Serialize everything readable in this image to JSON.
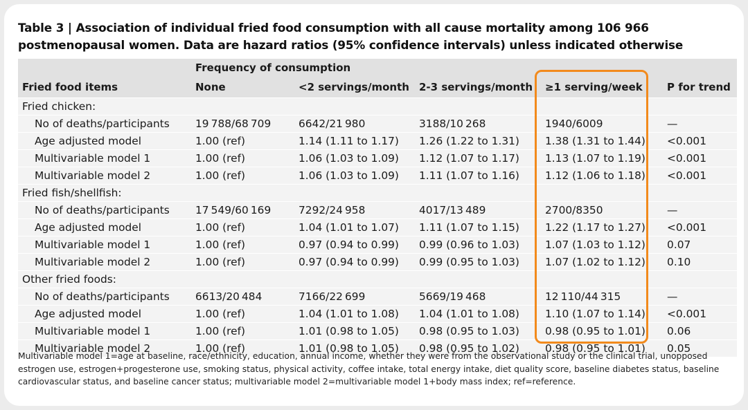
{
  "title": "Table 3 | Association of individual fried food consumption with all cause mortality among 106 966 postmenopausal women. Data are hazard ratios (95% confidence intervals) unless indicated otherwise",
  "header": {
    "group_label": "Frequency of consumption",
    "columns": [
      "Fried food items",
      "None",
      "<2 servings/month",
      "2-3 servings/month",
      "≥1 serving/week",
      "P for trend"
    ]
  },
  "sections": [
    {
      "label": "Fried chicken:",
      "rows": [
        {
          "label": "No of deaths/participants",
          "cells": [
            "19 788/68 709",
            "6642/21 980",
            "3188/10 268",
            "1940/6009",
            "—"
          ]
        },
        {
          "label": "Age adjusted model",
          "cells": [
            "1.00 (ref)",
            "1.14 (1.11 to 1.17)",
            "1.26 (1.22 to 1.31)",
            "1.38 (1.31 to 1.44)",
            "<0.001"
          ]
        },
        {
          "label": "Multivariable model 1",
          "cells": [
            "1.00 (ref)",
            "1.06 (1.03 to 1.09)",
            "1.12 (1.07 to 1.17)",
            "1.13 (1.07 to 1.19)",
            "<0.001"
          ]
        },
        {
          "label": "Multivariable model 2",
          "cells": [
            "1.00 (ref)",
            "1.06 (1.03 to 1.09)",
            "1.11 (1.07 to 1.16)",
            "1.12 (1.06 to 1.18)",
            "<0.001"
          ]
        }
      ]
    },
    {
      "label": "Fried fish/shellfish:",
      "rows": [
        {
          "label": "No of deaths/participants",
          "cells": [
            "17 549/60 169",
            "7292/24 958",
            "4017/13 489",
            "2700/8350",
            "—"
          ]
        },
        {
          "label": "Age adjusted model",
          "cells": [
            "1.00 (ref)",
            "1.04 (1.01 to 1.07)",
            "1.11 (1.07 to 1.15)",
            "1.22 (1.17 to 1.27)",
            "<0.001"
          ]
        },
        {
          "label": "Multivariable model 1",
          "cells": [
            "1.00 (ref)",
            "0.97 (0.94 to 0.99)",
            "0.99 (0.96 to 1.03)",
            "1.07 (1.03 to 1.12)",
            "0.07"
          ]
        },
        {
          "label": "Multivariable model 2",
          "cells": [
            "1.00 (ref)",
            "0.97 (0.94 to 0.99)",
            "0.99 (0.95 to 1.03)",
            "1.07 (1.02 to 1.12)",
            "0.10"
          ]
        }
      ]
    },
    {
      "label": "Other fried foods:",
      "rows": [
        {
          "label": "No of deaths/participants",
          "cells": [
            "6613/20 484",
            "7166/22 699",
            "5669/19 468",
            "12 110/44 315",
            "—"
          ]
        },
        {
          "label": "Age adjusted model",
          "cells": [
            "1.00 (ref)",
            "1.04 (1.01 to 1.08)",
            "1.04 (1.01 to 1.08)",
            "1.10 (1.07 to 1.14)",
            "<0.001"
          ]
        },
        {
          "label": "Multivariable model 1",
          "cells": [
            "1.00 (ref)",
            "1.01 (0.98 to 1.05)",
            "0.98 (0.95 to 1.03)",
            "0.98 (0.95 to 1.01)",
            "0.06"
          ]
        },
        {
          "label": "Multivariable model 2",
          "cells": [
            "1.00 (ref)",
            "1.01 (0.98 to 1.05)",
            "0.98 (0.95 to 1.02)",
            "0.98 (0.95 to 1.01)",
            "0.05"
          ]
        }
      ]
    }
  ],
  "footnote": "Multivariable model 1=age at baseline, race/ethnicity, education, annual income, whether they were from the observational study or the clinical trial, unopposed estrogen use, estrogen+progesterone use, smoking status, physical activity, coffee intake, total energy intake, diet quality score, baseline diabetes status, baseline cardiovascular status, and baseline cancer status; multivariable model 2=multivariable model 1+body mass index; ref=reference.",
  "colors": {
    "highlight": "#f28a1c",
    "header_bg": "#e1e1e1",
    "row_bg": "#f3f3f3"
  }
}
